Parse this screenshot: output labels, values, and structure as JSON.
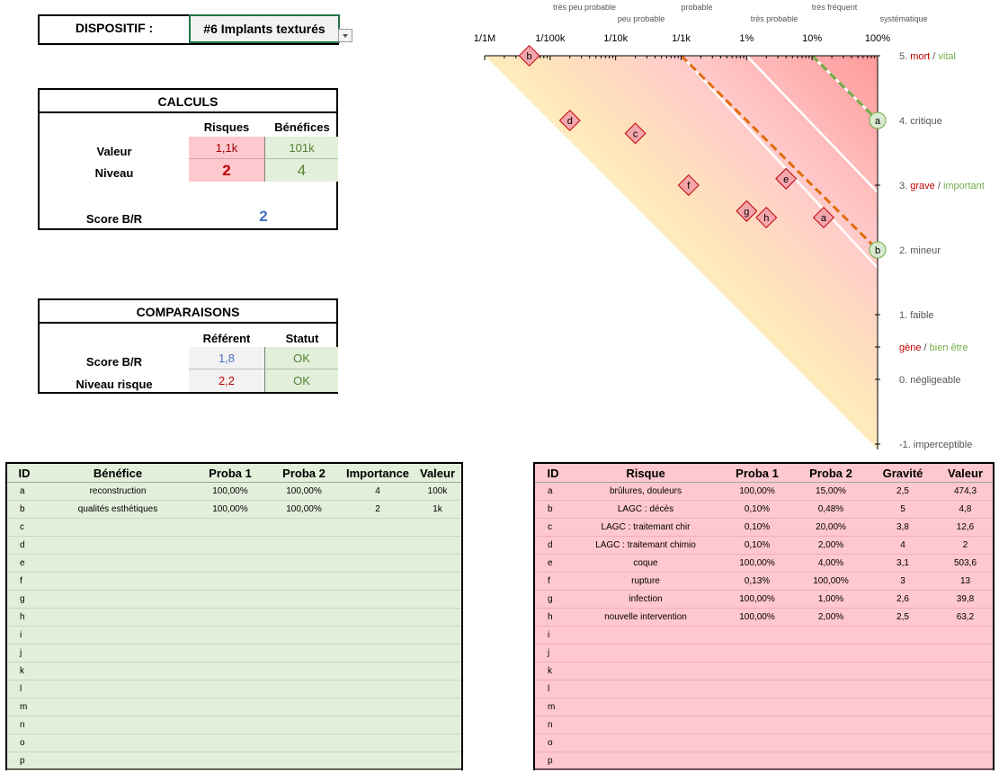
{
  "dispositif": {
    "label": "DISPOSITIF :",
    "value": "#6 Implants texturés"
  },
  "calculs": {
    "title": "CALCULS",
    "col_risques": "Risques",
    "col_benefices": "Bénéfices",
    "row_valeur": "Valeur",
    "row_niveau": "Niveau",
    "valeur_risques": "1,1k",
    "valeur_benefices": "101k",
    "niveau_risques": "2",
    "niveau_benefices": "4",
    "score_label": "Score B/R",
    "score_value": "2"
  },
  "comparaisons": {
    "title": "COMPARAISONS",
    "col_referent": "Référent",
    "col_statut": "Statut",
    "row_score": "Score B/R",
    "row_niveau": "Niveau risque",
    "score_ref": "1,8",
    "score_statut": "OK",
    "niveau_ref": "2,2",
    "niveau_statut": "OK"
  },
  "benefits_table": {
    "headers": [
      "ID",
      "Bénéfice",
      "Proba 1",
      "Proba 2",
      "Importance",
      "Valeur"
    ],
    "rows": [
      [
        "a",
        "reconstruction",
        "100,00%",
        "100,00%",
        "4",
        "100k"
      ],
      [
        "b",
        "qualités esthétiques",
        "100,00%",
        "100,00%",
        "2",
        "1k"
      ],
      [
        "c",
        "",
        "",
        "",
        "",
        ""
      ],
      [
        "d",
        "",
        "",
        "",
        "",
        ""
      ],
      [
        "e",
        "",
        "",
        "",
        "",
        ""
      ],
      [
        "f",
        "",
        "",
        "",
        "",
        ""
      ],
      [
        "g",
        "",
        "",
        "",
        "",
        ""
      ],
      [
        "h",
        "",
        "",
        "",
        "",
        ""
      ],
      [
        "i",
        "",
        "",
        "",
        "",
        ""
      ],
      [
        "j",
        "",
        "",
        "",
        "",
        ""
      ],
      [
        "k",
        "",
        "",
        "",
        "",
        ""
      ],
      [
        "l",
        "",
        "",
        "",
        "",
        ""
      ],
      [
        "m",
        "",
        "",
        "",
        "",
        ""
      ],
      [
        "n",
        "",
        "",
        "",
        "",
        ""
      ],
      [
        "o",
        "",
        "",
        "",
        "",
        ""
      ],
      [
        "p",
        "",
        "",
        "",
        "",
        ""
      ]
    ]
  },
  "risks_table": {
    "headers": [
      "ID",
      "Risque",
      "Proba 1",
      "Proba 2",
      "Gravité",
      "Valeur"
    ],
    "rows": [
      [
        "a",
        "brûlures, douleurs",
        "100,00%",
        "15,00%",
        "2,5",
        "474,3"
      ],
      [
        "b",
        "LAGC : décès",
        "0,10%",
        "0,48%",
        "5",
        "4,8"
      ],
      [
        "c",
        "LAGC : traitemant chir",
        "0,10%",
        "20,00%",
        "3,8",
        "12,6"
      ],
      [
        "d",
        "LAGC : traitemant chimio",
        "0,10%",
        "2,00%",
        "4",
        "2"
      ],
      [
        "e",
        "coque",
        "100,00%",
        "4,00%",
        "3,1",
        "503,6"
      ],
      [
        "f",
        "rupture",
        "0,13%",
        "100,00%",
        "3",
        "13"
      ],
      [
        "g",
        "infection",
        "100,00%",
        "1,00%",
        "2,6",
        "39,8"
      ],
      [
        "h",
        "nouvelle intervention",
        "100,00%",
        "2,00%",
        "2,5",
        "63,2"
      ],
      [
        "i",
        "",
        "",
        "",
        "",
        ""
      ],
      [
        "j",
        "",
        "",
        "",
        "",
        ""
      ],
      [
        "k",
        "",
        "",
        "",
        "",
        ""
      ],
      [
        "l",
        "",
        "",
        "",
        "",
        ""
      ],
      [
        "m",
        "",
        "",
        "",
        "",
        ""
      ],
      [
        "n",
        "",
        "",
        "",
        "",
        ""
      ],
      [
        "o",
        "",
        "",
        "",
        "",
        ""
      ],
      [
        "p",
        "",
        "",
        "",
        "",
        ""
      ]
    ]
  },
  "chart_data": {
    "type": "scatter",
    "x_tick_labels": [
      "1/1M",
      "1/100k",
      "1/10k",
      "1/1k",
      "1%",
      "10%",
      "100%"
    ],
    "x_tick_values": [
      1e-06,
      1e-05,
      0.0001,
      0.001,
      0.01,
      0.1,
      1
    ],
    "x_scale": "log",
    "probability_words": [
      "très peu probable",
      "peu probable",
      "probable",
      "très probable",
      "très fréquent",
      "systématique"
    ],
    "y_levels": [
      {
        "value": 5,
        "label": "5.",
        "red": "mort",
        "sep": " / ",
        "green": "vital"
      },
      {
        "value": 4,
        "label": "4. critique"
      },
      {
        "value": 3,
        "label": "3.",
        "red": "grave",
        "sep": " / ",
        "green": "important"
      },
      {
        "value": 2,
        "label": "2. mineur"
      },
      {
        "value": 1,
        "label": "1. faible"
      },
      {
        "value": 0.5,
        "label": "",
        "red": "gène",
        "sep": " / ",
        "green": "bien être"
      },
      {
        "value": 0,
        "label": "0. négligeable"
      },
      {
        "value": -1,
        "label": "-1. imperceptible"
      }
    ],
    "ylim": [
      -1,
      5
    ],
    "risk_points": [
      {
        "id": "a",
        "x": 0.15,
        "y": 2.5
      },
      {
        "id": "b",
        "x": 4.8e-06,
        "y": 5
      },
      {
        "id": "c",
        "x": 0.0002,
        "y": 3.8
      },
      {
        "id": "d",
        "x": 2e-05,
        "y": 4
      },
      {
        "id": "e",
        "x": 0.04,
        "y": 3.1
      },
      {
        "id": "f",
        "x": 0.0013,
        "y": 3
      },
      {
        "id": "g",
        "x": 0.01,
        "y": 2.6
      },
      {
        "id": "h",
        "x": 0.02,
        "y": 2.5
      }
    ],
    "benefit_points": [
      {
        "id": "a",
        "x": 1,
        "y": 4
      },
      {
        "id": "b",
        "x": 1,
        "y": 2
      }
    ],
    "colors": {
      "risk_fill": "#f4a6ad",
      "risk_stroke": "#c00000",
      "benefit_fill": "#d9ead3",
      "benefit_stroke": "#70ad47",
      "risk_line": "#e26b0a",
      "benefit_line": "#70ad47"
    }
  }
}
